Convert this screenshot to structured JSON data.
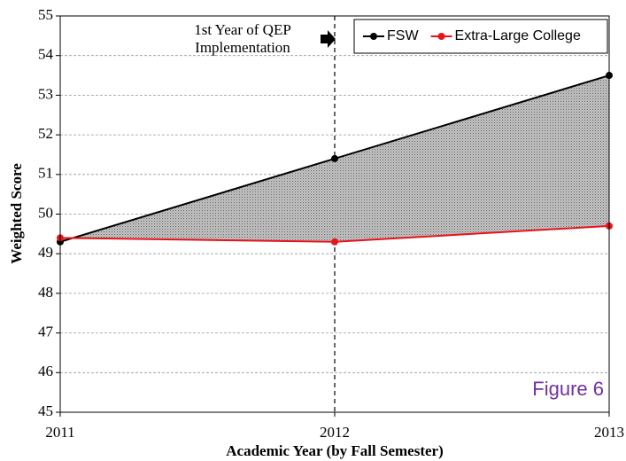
{
  "chart_data": {
    "type": "line",
    "x": [
      2011,
      2012,
      2013
    ],
    "xlim": [
      2011,
      2013
    ],
    "xticks": [
      2011,
      2012,
      2013
    ],
    "ylim": [
      45,
      55
    ],
    "yticks": [
      45,
      46,
      47,
      48,
      49,
      50,
      51,
      52,
      53,
      54,
      55
    ],
    "grid": true,
    "legend": "top-right",
    "series": [
      {
        "name": "FSW",
        "color": "#000000",
        "values": [
          49.3,
          51.4,
          53.5
        ]
      },
      {
        "name": "Extra-Large College",
        "color": "#e8141b",
        "values": [
          49.4,
          49.3,
          49.7
        ]
      }
    ],
    "fill_between": true,
    "xlabel": "Academic Year (by Fall Semester)",
    "ylabel": "Weighted Score",
    "annotation": {
      "lines": [
        "1st Year of QEP",
        "Implementation"
      ],
      "x": 2012
    },
    "figure_label": "Figure 6"
  }
}
